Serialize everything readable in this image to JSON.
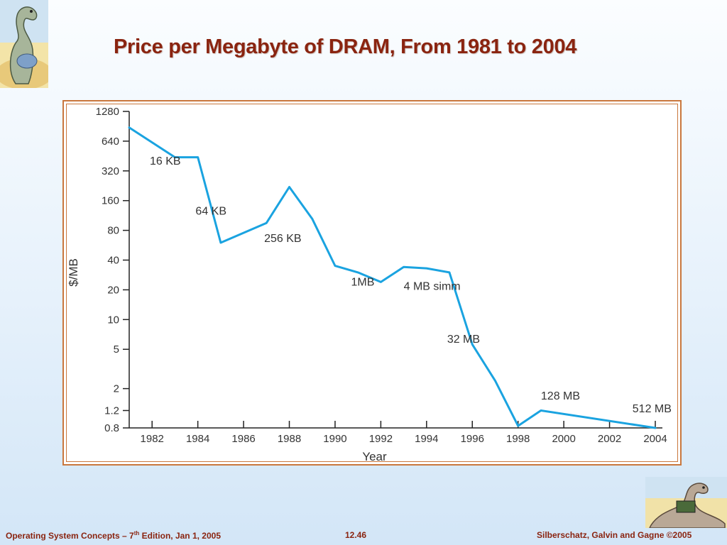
{
  "slide": {
    "title": "Price per Megabyte of DRAM, From 1981 to 2004"
  },
  "footer": {
    "left_prefix": "Operating System Concepts – 7",
    "left_sup": "th",
    "left_suffix": " Edition, Jan 1, 2005",
    "center": "12.46",
    "right": "Silberschatz, Galvin and Gagne ©2005"
  },
  "chart_data": {
    "type": "line",
    "xlabel": "Year",
    "ylabel": "$/MB",
    "y_scale": "log",
    "xlim": [
      1981,
      2004
    ],
    "ylim": [
      0.8,
      1280
    ],
    "x_ticks": [
      1982,
      1984,
      1986,
      1988,
      1990,
      1992,
      1994,
      1996,
      1998,
      2000,
      2002,
      2004
    ],
    "y_ticks": [
      1280,
      640,
      320,
      160,
      80,
      40,
      20,
      10,
      5,
      2,
      1.2,
      0.8
    ],
    "grid": false,
    "line_color": "#1aa3e0",
    "series": [
      {
        "x": [
          1981,
          1983,
          1984,
          1985,
          1987,
          1988,
          1989,
          1990,
          1991,
          1992,
          1993,
          1994,
          1995,
          1996,
          1997,
          1998,
          1999,
          2004
        ],
        "values": [
          880,
          440,
          440,
          60,
          95,
          220,
          105,
          35,
          30,
          24,
          34,
          33,
          30,
          5.6,
          2.4,
          0.84,
          1.2,
          0.8
        ]
      }
    ],
    "annotations": [
      {
        "text": "16 KB",
        "x": 1981.9,
        "y": 370
      },
      {
        "text": "64 KB",
        "x": 1983.9,
        "y": 115
      },
      {
        "text": "256 KB",
        "x": 1986.9,
        "y": 61
      },
      {
        "text": "1MB",
        "x": 1990.7,
        "y": 22
      },
      {
        "text": "4 MB simm",
        "x": 1993.0,
        "y": 20
      },
      {
        "text": "32 MB",
        "x": 1994.9,
        "y": 5.8
      },
      {
        "text": "128 MB",
        "x": 1999.0,
        "y": 1.55
      },
      {
        "text": "512 MB",
        "x": 2003.0,
        "y": 1.15
      }
    ]
  }
}
